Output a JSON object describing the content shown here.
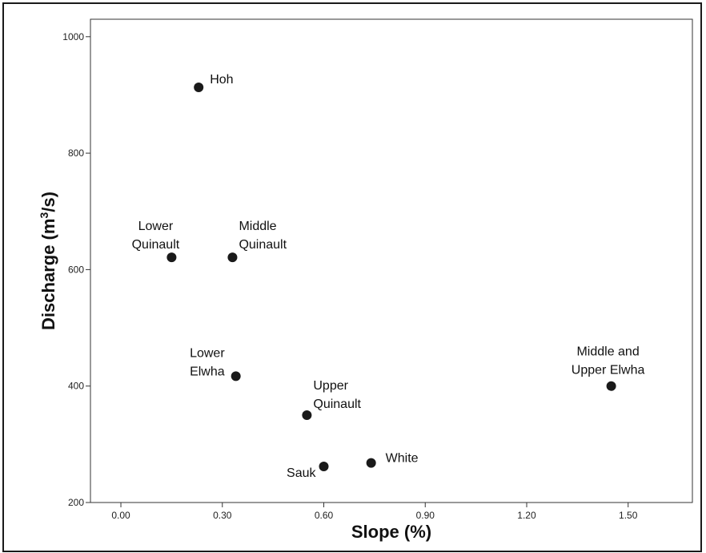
{
  "chart_data": {
    "type": "scatter",
    "title": "",
    "xlabel": "Slope (%)",
    "ylabel": "Discharge (m³/s)",
    "xlim": [
      -0.09,
      1.69
    ],
    "ylim": [
      200,
      1030
    ],
    "xticks": [
      0.0,
      0.3,
      0.6,
      0.9,
      1.2,
      1.5
    ],
    "xtick_labels": [
      "0.00",
      "0.30",
      "0.60",
      "0.90",
      "1.20",
      "1.50"
    ],
    "yticks": [
      200,
      400,
      600,
      800,
      1000
    ],
    "ytick_labels": [
      "200",
      "400",
      "600",
      "800",
      "1000"
    ],
    "grid": false,
    "legend": "none",
    "marker_color": "#1a1a1a",
    "points": [
      {
        "label": [
          "Hoh"
        ],
        "x": 0.23,
        "y": 913
      },
      {
        "label": [
          "Lower",
          "Quinault"
        ],
        "x": 0.15,
        "y": 621
      },
      {
        "label": [
          "Middle",
          "Quinault"
        ],
        "x": 0.33,
        "y": 621
      },
      {
        "label": [
          "Lower",
          "Elwha"
        ],
        "x": 0.34,
        "y": 417
      },
      {
        "label": [
          "Upper",
          "Quinault"
        ],
        "x": 0.55,
        "y": 350
      },
      {
        "label": [
          "Sauk"
        ],
        "x": 0.6,
        "y": 262
      },
      {
        "label": [
          "White"
        ],
        "x": 0.74,
        "y": 268
      },
      {
        "label": [
          "Middle and",
          "Upper Elwha"
        ],
        "x": 1.45,
        "y": 400
      }
    ]
  }
}
